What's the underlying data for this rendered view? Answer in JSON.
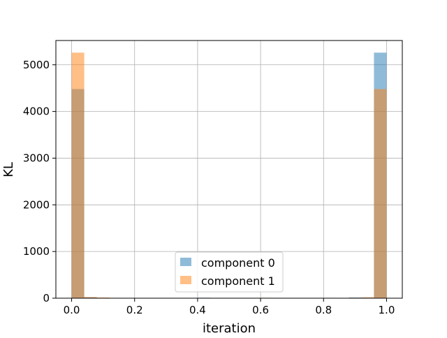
{
  "chart_data": {
    "type": "bar",
    "title": "",
    "xlabel": "iteration",
    "ylabel": "KL",
    "xlim": [
      -0.05,
      1.05
    ],
    "ylim": [
      0,
      5520
    ],
    "grid": true,
    "legend_position": "lower center",
    "x_ticks": [
      "0.0",
      "0.2",
      "0.4",
      "0.6",
      "0.8",
      "1.0"
    ],
    "y_ticks": [
      "0",
      "1000",
      "2000",
      "3000",
      "4000",
      "5000"
    ],
    "bin_edges": [
      0.0,
      0.04,
      0.08,
      0.12,
      0.16,
      0.2,
      0.24,
      0.28,
      0.32,
      0.36,
      0.4,
      0.44,
      0.48,
      0.52,
      0.56,
      0.6,
      0.64,
      0.68,
      0.72,
      0.76,
      0.8,
      0.84,
      0.88,
      0.92,
      0.96,
      1.0
    ],
    "series": [
      {
        "name": "component 0",
        "color": "#1f77b4",
        "values": [
          4480,
          20,
          8,
          5,
          2,
          2,
          2,
          0,
          5,
          3,
          10,
          3,
          1,
          0,
          1,
          0,
          1,
          1,
          0,
          2,
          8,
          6,
          15,
          12,
          5260
        ]
      },
      {
        "name": "component 1",
        "color": "#ff7f0e",
        "values": [
          5260,
          25,
          15,
          8,
          5,
          6,
          1,
          0,
          2,
          1,
          3,
          1,
          0,
          0,
          1,
          8,
          2,
          6,
          1,
          0,
          1,
          3,
          10,
          20,
          4480
        ]
      }
    ]
  }
}
